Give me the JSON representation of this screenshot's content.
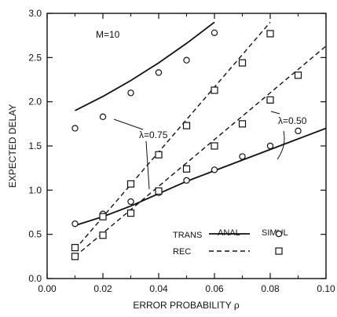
{
  "chart_data": {
    "type": "line",
    "xlabel": "ERROR PROBABILITY  ρ",
    "ylabel": "EXPECTED DELAY",
    "xlim": [
      0.0,
      0.1
    ],
    "ylim": [
      0.0,
      3.0
    ],
    "xticks": [
      0.0,
      0.02,
      0.04,
      0.06,
      0.08,
      0.1
    ],
    "xtick_labels": [
      "0.00",
      "0.02",
      "0.04",
      "0.06",
      "0.08",
      "0.10"
    ],
    "yticks": [
      0.0,
      0.5,
      1.0,
      1.5,
      2.0,
      2.5,
      3.0
    ],
    "ytick_labels": [
      "0.0",
      "0.5",
      "1.0",
      "1.5",
      "2.0",
      "2.5",
      "3.0"
    ],
    "grid": false,
    "series": [
      {
        "name": "TRANS",
        "group": "M=10, λ=0.75",
        "kind": "analytical",
        "style": "solid",
        "x": [
          0.01,
          0.02,
          0.03,
          0.04,
          0.05,
          0.06
        ],
        "y": [
          1.9,
          2.06,
          2.24,
          2.44,
          2.66,
          2.9
        ]
      },
      {
        "name": "TRANS",
        "group": "λ=0.75 / λ=0.50",
        "kind": "analytical",
        "style": "solid",
        "x": [
          0.01,
          0.02,
          0.03,
          0.04,
          0.05,
          0.06,
          0.07,
          0.08,
          0.09,
          0.1
        ],
        "y": [
          0.6,
          0.7,
          0.82,
          0.96,
          1.1,
          1.22,
          1.34,
          1.46,
          1.58,
          1.7
        ]
      },
      {
        "name": "REC",
        "group": "λ=0.75",
        "kind": "analytical",
        "style": "dashed",
        "x": [
          0.01,
          0.08
        ],
        "y": [
          0.33,
          2.9
        ]
      },
      {
        "name": "REC",
        "group": "λ=0.50",
        "kind": "analytical",
        "style": "dashed",
        "x": [
          0.01,
          0.1
        ],
        "y": [
          0.25,
          2.63
        ]
      },
      {
        "name": "TRANS",
        "group": "M=10, λ=0.75",
        "kind": "simulation",
        "marker": "circle",
        "x": [
          0.01,
          0.02,
          0.03,
          0.04,
          0.05,
          0.06
        ],
        "y": [
          1.7,
          1.83,
          2.1,
          2.33,
          2.47,
          2.78
        ]
      },
      {
        "name": "TRANS",
        "group": "λ=0.75 / λ=0.50",
        "kind": "simulation",
        "marker": "circle",
        "x": [
          0.01,
          0.02,
          0.03,
          0.04,
          0.05,
          0.06,
          0.07,
          0.08,
          0.09
        ],
        "y": [
          0.62,
          0.73,
          0.87,
          0.97,
          1.11,
          1.23,
          1.38,
          1.5,
          1.67
        ]
      },
      {
        "name": "REC",
        "group": "λ=0.75",
        "kind": "simulation",
        "marker": "square",
        "x": [
          0.01,
          0.02,
          0.03,
          0.04,
          0.05,
          0.06,
          0.07,
          0.08
        ],
        "y": [
          0.35,
          0.7,
          1.07,
          1.4,
          1.73,
          2.13,
          2.44,
          2.77
        ]
      },
      {
        "name": "REC",
        "group": "λ=0.50",
        "kind": "simulation",
        "marker": "square",
        "x": [
          0.01,
          0.02,
          0.03,
          0.04,
          0.05,
          0.06,
          0.07,
          0.08,
          0.09
        ],
        "y": [
          0.25,
          0.49,
          0.74,
          0.99,
          1.24,
          1.5,
          1.75,
          2.02,
          2.3
        ]
      }
    ],
    "legend": {
      "placement": "bottom-right",
      "col_headers": [
        "ANAL",
        "SIMUL"
      ],
      "rows": [
        {
          "label": "TRANS",
          "style": "solid",
          "marker": "circle"
        },
        {
          "label": "REC",
          "style": "dashed",
          "marker": "square"
        }
      ]
    },
    "annotations": {
      "m_label": "M=10",
      "lambda_075": "λ=0.75",
      "lambda_050": "λ=0.50"
    }
  }
}
